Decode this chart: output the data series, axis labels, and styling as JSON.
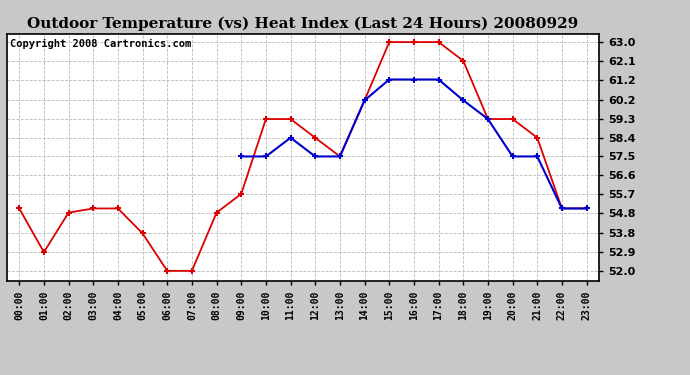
{
  "title": "Outdoor Temperature (vs) Heat Index (Last 24 Hours) 20080929",
  "copyright": "Copyright 2008 Cartronics.com",
  "hours": [
    "00:00",
    "01:00",
    "02:00",
    "03:00",
    "04:00",
    "05:00",
    "06:00",
    "07:00",
    "08:00",
    "09:00",
    "10:00",
    "11:00",
    "12:00",
    "13:00",
    "14:00",
    "15:00",
    "16:00",
    "17:00",
    "18:00",
    "19:00",
    "20:00",
    "21:00",
    "22:00",
    "23:00"
  ],
  "red_data": [
    55.0,
    52.9,
    54.8,
    55.0,
    55.0,
    53.8,
    52.0,
    52.0,
    54.8,
    55.7,
    59.3,
    59.3,
    58.4,
    57.5,
    60.2,
    63.0,
    63.0,
    63.0,
    62.1,
    59.3,
    59.3,
    58.4,
    55.0,
    55.0
  ],
  "blue_data": [
    null,
    null,
    null,
    null,
    null,
    null,
    null,
    null,
    null,
    57.5,
    57.5,
    58.4,
    57.5,
    57.5,
    60.2,
    61.2,
    61.2,
    61.2,
    60.2,
    59.3,
    57.5,
    57.5,
    55.0,
    55.0
  ],
  "yticks": [
    52.0,
    52.9,
    53.8,
    54.8,
    55.7,
    56.6,
    57.5,
    58.4,
    59.3,
    60.2,
    61.2,
    62.1,
    63.0
  ],
  "ylim_min": 51.5,
  "ylim_max": 63.4,
  "fig_bg_color": "#c8c8c8",
  "plot_bg_color": "#ffffff",
  "red_color": "#dd0000",
  "blue_color": "#0000cc",
  "grid_color": "#bbbbbb",
  "title_fontsize": 11,
  "copyright_fontsize": 7.5
}
